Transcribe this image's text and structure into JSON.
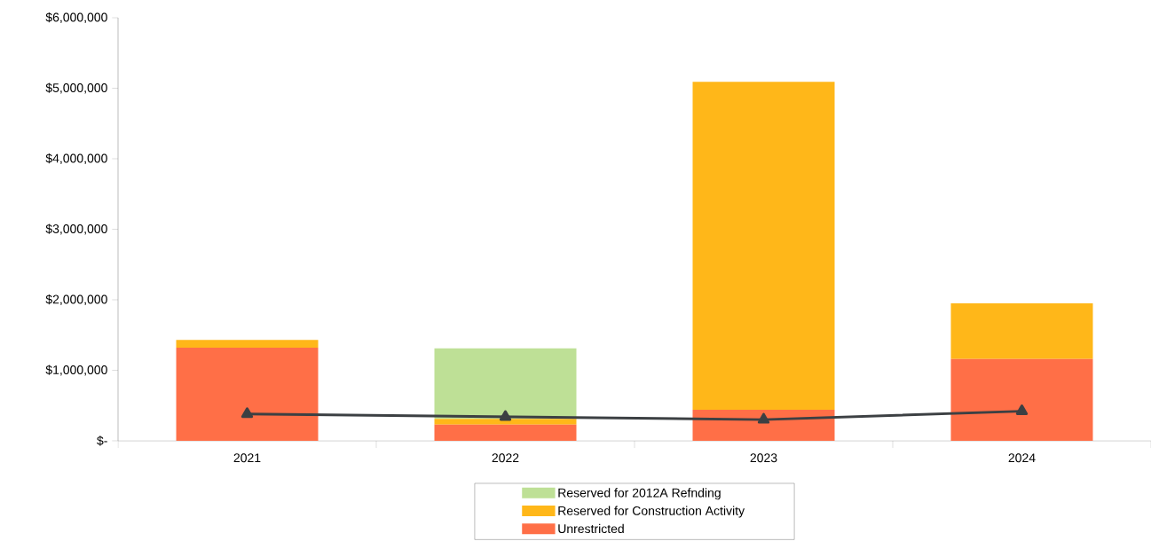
{
  "chart_data": {
    "type": "bar",
    "stacked": true,
    "categories": [
      "2021",
      "2022",
      "2023",
      "2024"
    ],
    "series": [
      {
        "name": "Unrestricted",
        "color": "#ff6f47",
        "values": [
          1320000,
          230000,
          440000,
          1160000
        ]
      },
      {
        "name": "Reserved for Construction Activity",
        "color": "#ffb719",
        "values": [
          110000,
          80000,
          4650000,
          790000
        ]
      },
      {
        "name": "Reserved for 2012A Refnding",
        "color": "#bee096",
        "values": [
          0,
          1000000,
          0,
          0
        ]
      },
      {
        "type": "line",
        "color": "#3c4043",
        "values": [
          380000,
          340000,
          300000,
          420000
        ]
      }
    ],
    "marker": "triangle",
    "legend": "bottom",
    "ylim": [
      0,
      6000000
    ],
    "yticks": [
      {
        "value": 0,
        "label": "$-"
      },
      {
        "value": 1000000,
        "label": "$1,000,000"
      },
      {
        "value": 2000000,
        "label": "$2,000,000"
      },
      {
        "value": 3000000,
        "label": "$3,000,000"
      },
      {
        "value": 4000000,
        "label": "$4,000,000"
      },
      {
        "value": 5000000,
        "label": "$5,000,000"
      },
      {
        "value": 6000000,
        "label": "$6,000,000"
      }
    ]
  }
}
